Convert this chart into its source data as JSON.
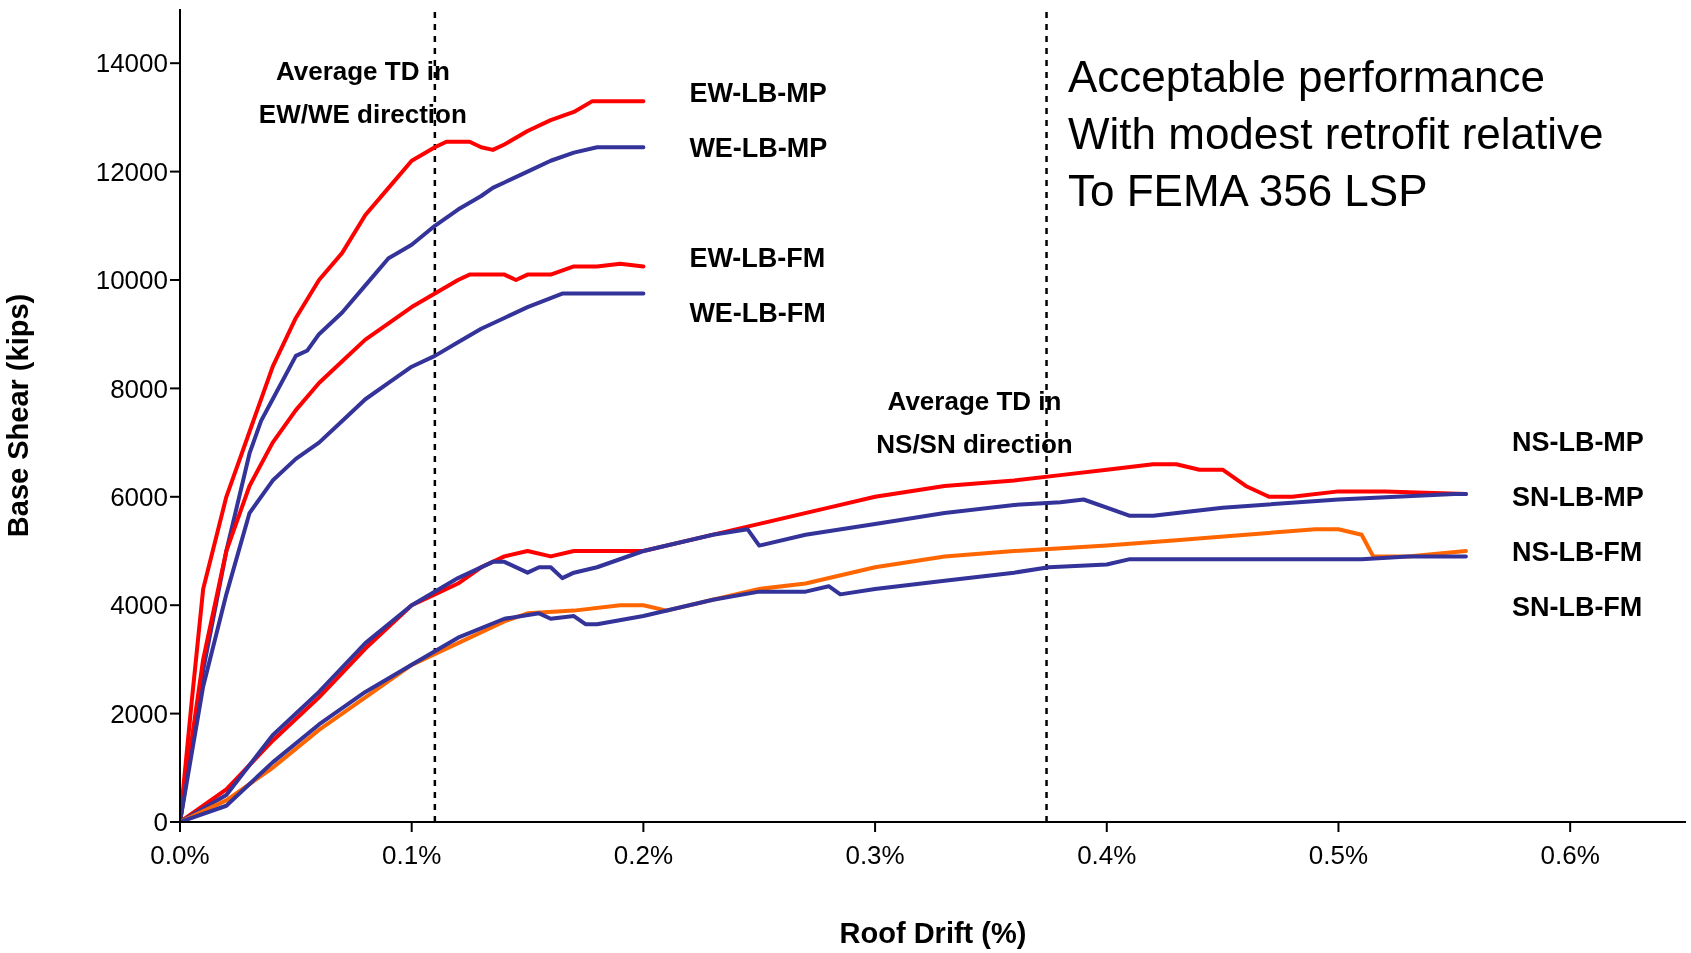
{
  "chart_data": {
    "type": "line",
    "xlabel": "Roof Drift (%)",
    "ylabel": "Base Shear (kips)",
    "xlim": [
      0,
      0.65
    ],
    "xticks": [
      {
        "value": 0,
        "label": "0.0%"
      },
      {
        "value": 0.1,
        "label": "0.1%"
      },
      {
        "value": 0.2,
        "label": "0.2%"
      },
      {
        "value": 0.3,
        "label": "0.3%"
      },
      {
        "value": 0.4,
        "label": "0.4%"
      },
      {
        "value": 0.5,
        "label": "0.5%"
      },
      {
        "value": 0.6,
        "label": "0.6%"
      }
    ],
    "ylim": [
      0,
      15000
    ],
    "yticks": [
      0,
      2000,
      4000,
      6000,
      8000,
      10000,
      12000,
      14000
    ],
    "series": [
      {
        "name": "EW-LB-MP",
        "color": "#ff0000",
        "x": [
          0,
          0.005,
          0.01,
          0.02,
          0.03,
          0.04,
          0.05,
          0.06,
          0.07,
          0.08,
          0.09,
          0.1,
          0.11,
          0.115,
          0.125,
          0.13,
          0.135,
          0.14,
          0.15,
          0.16,
          0.17,
          0.178,
          0.2
        ],
        "values": [
          0,
          2200,
          4300,
          6000,
          7200,
          8400,
          9300,
          10000,
          10500,
          11200,
          11700,
          12200,
          12450,
          12550,
          12550,
          12450,
          12400,
          12500,
          12750,
          12950,
          13100,
          13300,
          13300
        ]
      },
      {
        "name": "WE-LB-MP",
        "color": "#333399",
        "x": [
          0,
          0.01,
          0.02,
          0.03,
          0.035,
          0.04,
          0.05,
          0.055,
          0.06,
          0.07,
          0.08,
          0.09,
          0.1,
          0.11,
          0.12,
          0.13,
          0.135,
          0.14,
          0.15,
          0.16,
          0.17,
          0.18,
          0.2
        ],
        "values": [
          0,
          2800,
          5000,
          6800,
          7400,
          7800,
          8600,
          8700,
          9000,
          9400,
          9900,
          10400,
          10650,
          11000,
          11300,
          11550,
          11700,
          11800,
          12000,
          12200,
          12350,
          12450,
          12450
        ]
      },
      {
        "name": "EW-LB-FM",
        "color": "#ff0000",
        "x": [
          0,
          0.01,
          0.02,
          0.03,
          0.04,
          0.05,
          0.06,
          0.07,
          0.08,
          0.09,
          0.1,
          0.11,
          0.12,
          0.125,
          0.14,
          0.145,
          0.15,
          0.16,
          0.17,
          0.18,
          0.19,
          0.2
        ],
        "values": [
          0,
          3000,
          5000,
          6200,
          7000,
          7600,
          8100,
          8500,
          8900,
          9200,
          9500,
          9750,
          10000,
          10100,
          10100,
          10000,
          10100,
          10100,
          10250,
          10250,
          10300,
          10250
        ]
      },
      {
        "name": "WE-LB-FM",
        "color": "#333399",
        "x": [
          0,
          0.01,
          0.02,
          0.03,
          0.04,
          0.05,
          0.06,
          0.07,
          0.08,
          0.09,
          0.1,
          0.11,
          0.12,
          0.13,
          0.14,
          0.15,
          0.165,
          0.2
        ],
        "values": [
          0,
          2500,
          4200,
          5700,
          6300,
          6700,
          7000,
          7400,
          7800,
          8100,
          8400,
          8600,
          8850,
          9100,
          9300,
          9500,
          9750,
          9750
        ]
      },
      {
        "name": "NS-LB-MP",
        "color": "#ff0000",
        "x": [
          0,
          0.02,
          0.04,
          0.06,
          0.08,
          0.1,
          0.11,
          0.12,
          0.13,
          0.14,
          0.15,
          0.16,
          0.17,
          0.2,
          0.22,
          0.25,
          0.28,
          0.3,
          0.33,
          0.36,
          0.38,
          0.4,
          0.42,
          0.43,
          0.44,
          0.45,
          0.46,
          0.47,
          0.48,
          0.5,
          0.52,
          0.555
        ],
        "values": [
          0,
          600,
          1500,
          2300,
          3200,
          4000,
          4200,
          4400,
          4700,
          4900,
          5000,
          4900,
          5000,
          5000,
          5200,
          5500,
          5800,
          6000,
          6200,
          6300,
          6400,
          6500,
          6600,
          6600,
          6500,
          6500,
          6200,
          6000,
          6000,
          6100,
          6100,
          6050
        ]
      },
      {
        "name": "SN-LB-MP",
        "color": "#333399",
        "x": [
          0,
          0.02,
          0.04,
          0.06,
          0.08,
          0.1,
          0.12,
          0.135,
          0.14,
          0.15,
          0.155,
          0.16,
          0.165,
          0.17,
          0.18,
          0.2,
          0.23,
          0.245,
          0.25,
          0.27,
          0.3,
          0.33,
          0.36,
          0.38,
          0.39,
          0.41,
          0.42,
          0.45,
          0.5,
          0.55,
          0.555
        ],
        "values": [
          0,
          500,
          1600,
          2400,
          3300,
          4000,
          4500,
          4800,
          4800,
          4600,
          4700,
          4700,
          4500,
          4600,
          4700,
          5000,
          5300,
          5400,
          5100,
          5300,
          5500,
          5700,
          5850,
          5900,
          5950,
          5650,
          5650,
          5800,
          5950,
          6050,
          6050
        ]
      },
      {
        "name": "NS-LB-FM",
        "color": "#ff6600",
        "x": [
          0,
          0.02,
          0.04,
          0.06,
          0.08,
          0.1,
          0.12,
          0.14,
          0.15,
          0.17,
          0.19,
          0.2,
          0.21,
          0.23,
          0.25,
          0.27,
          0.3,
          0.33,
          0.36,
          0.4,
          0.43,
          0.46,
          0.49,
          0.5,
          0.51,
          0.515,
          0.53,
          0.555
        ],
        "values": [
          0,
          400,
          1000,
          1700,
          2300,
          2900,
          3300,
          3700,
          3850,
          3900,
          4000,
          4000,
          3900,
          4100,
          4300,
          4400,
          4700,
          4900,
          5000,
          5100,
          5200,
          5300,
          5400,
          5400,
          5300,
          4900,
          4900,
          5000
        ]
      },
      {
        "name": "SN-LB-FM",
        "color": "#333399",
        "x": [
          0,
          0.02,
          0.04,
          0.06,
          0.08,
          0.1,
          0.12,
          0.14,
          0.155,
          0.16,
          0.17,
          0.175,
          0.18,
          0.2,
          0.23,
          0.25,
          0.27,
          0.28,
          0.285,
          0.3,
          0.33,
          0.36,
          0.375,
          0.4,
          0.41,
          0.51,
          0.53,
          0.555
        ],
        "values": [
          0,
          300,
          1100,
          1800,
          2400,
          2900,
          3400,
          3750,
          3850,
          3750,
          3800,
          3650,
          3650,
          3800,
          4100,
          4250,
          4250,
          4350,
          4200,
          4300,
          4450,
          4600,
          4700,
          4750,
          4850,
          4850,
          4900,
          4900
        ]
      }
    ],
    "ref_lines": [
      {
        "axis": "x",
        "value": 0.11,
        "label": "Average TD in\nEW/WE direction",
        "color": "#000000",
        "line_style": "dashed"
      },
      {
        "axis": "x",
        "value": 0.374,
        "label": "Average TD in\nNS/SN direction",
        "color": "#000000",
        "line_style": "dashed"
      }
    ],
    "annotations": [
      "Acceptable performance\nWith modest retrofit relative\nTo FEMA 356 LSP"
    ]
  }
}
